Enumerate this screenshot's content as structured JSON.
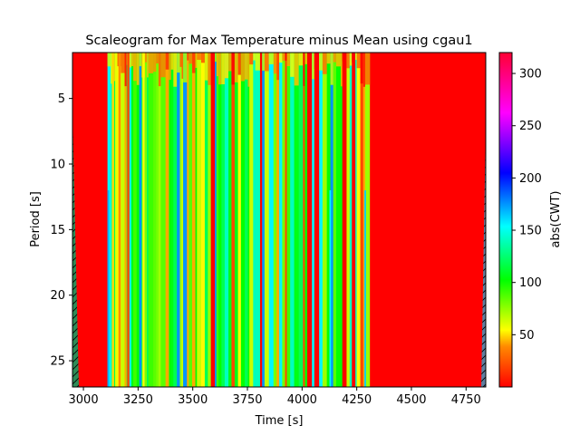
{
  "chart_data": {
    "type": "heatmap",
    "title": "Scaleogram for Max Temperature minus Mean using cgau1",
    "xlabel": "Time [s]",
    "ylabel": "Period [s]",
    "colorbar_label": "abs(CWT)",
    "colormap": "gist_rainbow_r",
    "xlim": [
      2950,
      4840
    ],
    "ylim": [
      27,
      1.5
    ],
    "y_inverted": true,
    "xticks": [
      3000,
      3250,
      3500,
      3750,
      4000,
      4250,
      4500,
      4750
    ],
    "yticks": [
      5,
      10,
      15,
      20,
      25
    ],
    "colorbar_range": [
      0,
      320
    ],
    "colorbar_ticks": [
      50,
      100,
      150,
      200,
      250,
      300
    ],
    "regions": [
      {
        "x": [
          2950,
          3110
        ],
        "level": "high",
        "approx_value": 300
      },
      {
        "x": [
          3110,
          4290
        ],
        "level": "mixed",
        "approx_value": 80
      },
      {
        "x": [
          4290,
          4840
        ],
        "level": "high",
        "approx_value": 300
      }
    ],
    "cone_of_influence_edges": true,
    "grid": false
  }
}
